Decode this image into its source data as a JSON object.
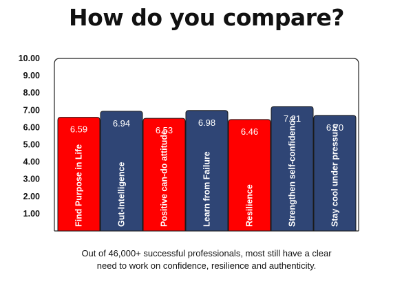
{
  "title": "How do you compare?",
  "caption": {
    "line1": "Out of 46,000+ successful professionals, most still have a clear",
    "line2": "need to work on confidence, resilience and authenticity."
  },
  "colors": {
    "red": "#ff0000",
    "navy": "#2f4575",
    "bar_border": "#1a1a1a",
    "frame": "#222222"
  },
  "chart_data": {
    "type": "bar",
    "categories": [
      "Find Purpose in Life",
      "Gut-Intelligence",
      "Positive can-do attitude",
      "Learn from Failure",
      "Resilience",
      "Strengthen self-confidence",
      "Stay cool under pressure"
    ],
    "values": [
      6.59,
      6.94,
      6.53,
      6.98,
      6.46,
      7.21,
      6.7
    ],
    "value_labels": [
      "6.59",
      "6.94",
      "6.53",
      "6.98",
      "6.46",
      "7.21",
      "6.70"
    ],
    "bar_colors": [
      "#ff0000",
      "#2f4575",
      "#ff0000",
      "#2f4575",
      "#ff0000",
      "#2f4575",
      "#2f4575"
    ],
    "y_ticks": [
      "1.00",
      "2.00",
      "3.00",
      "4.00",
      "5.00",
      "6.00",
      "7.00",
      "8.00",
      "9.00",
      "10.00"
    ],
    "ylim": [
      0,
      10
    ],
    "grid": false,
    "category_labels_rotated": true,
    "xlabel": "",
    "ylabel": ""
  }
}
